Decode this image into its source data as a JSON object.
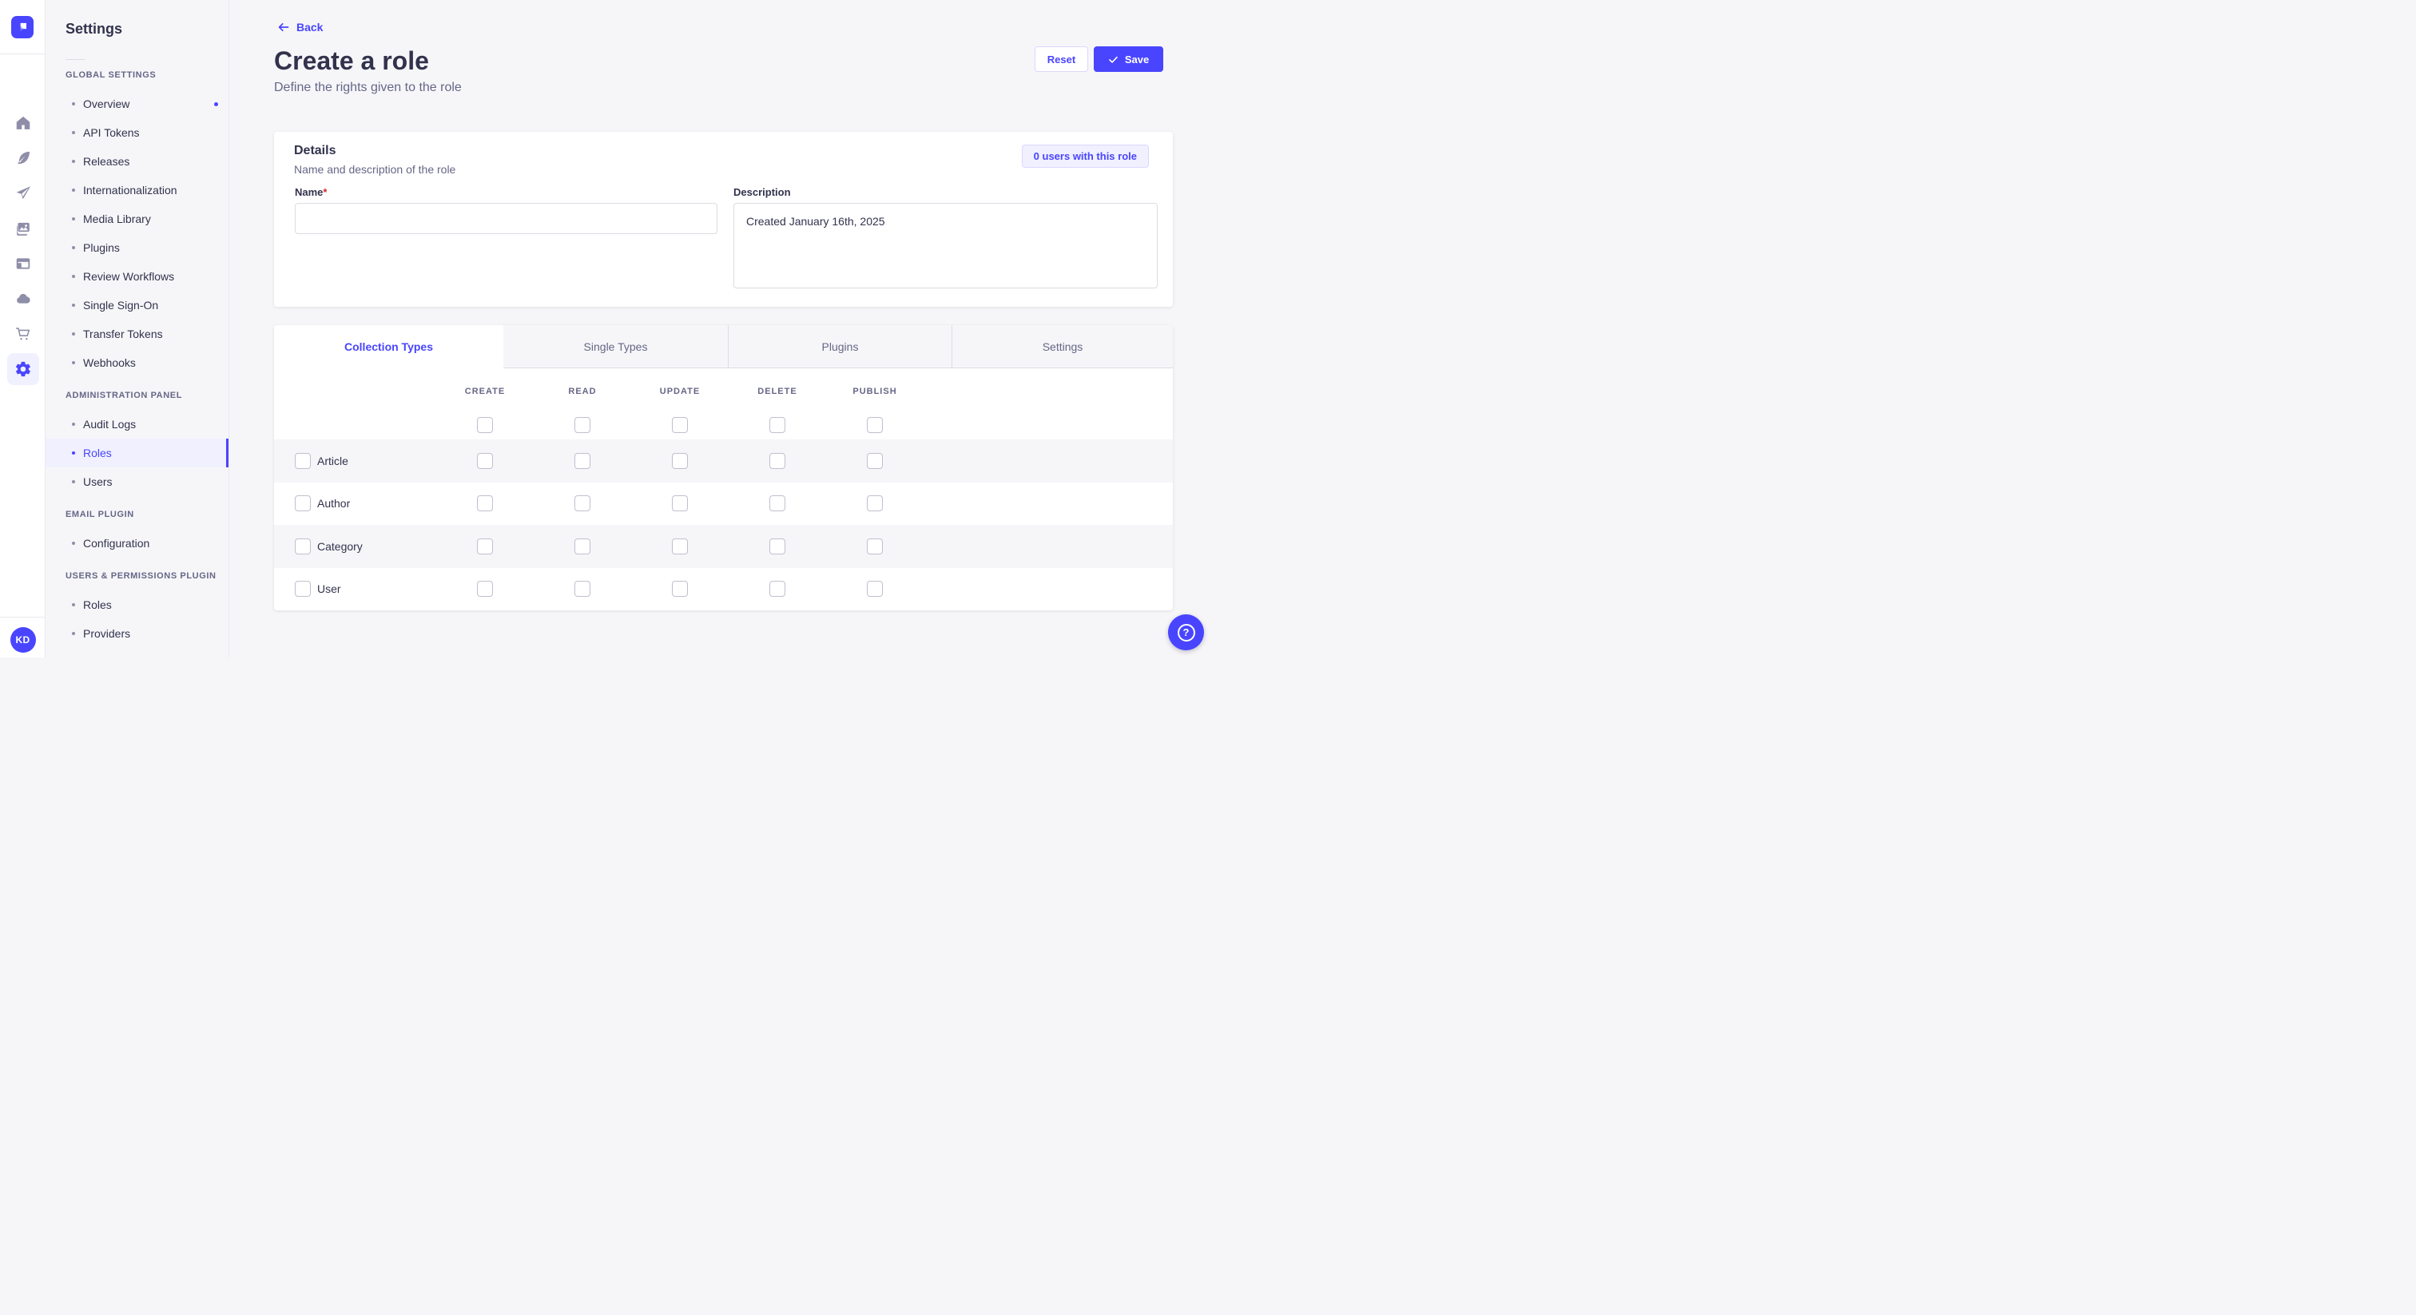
{
  "colors": {
    "primary": "#4945ff",
    "primary_light": "#f0f0ff",
    "primary_border": "#d9d8ff",
    "neutral_bg": "#f6f6f9",
    "border": "#dcdce4",
    "checkbox_border": "#c0c0cf",
    "text_dark": "#32324d",
    "text_gray": "#666687",
    "icon_gray": "#8e8ea9",
    "required_red": "#d02b20"
  },
  "rail": {
    "logo_icon": "strapi-logo",
    "icons": [
      {
        "name": "home-icon"
      },
      {
        "name": "feather-icon"
      },
      {
        "name": "paper-plane-icon"
      },
      {
        "name": "media-library-icon"
      },
      {
        "name": "layout-icon"
      },
      {
        "name": "cloud-icon"
      },
      {
        "name": "cart-icon"
      },
      {
        "name": "gear-icon",
        "active": true
      }
    ],
    "avatar_initials": "KD"
  },
  "sidebar": {
    "title": "Settings",
    "sections": [
      {
        "header": "GLOBAL SETTINGS",
        "items": [
          {
            "label": "Overview",
            "notification": true
          },
          {
            "label": "API Tokens"
          },
          {
            "label": "Releases"
          },
          {
            "label": "Internationalization"
          },
          {
            "label": "Media Library"
          },
          {
            "label": "Plugins"
          },
          {
            "label": "Review Workflows"
          },
          {
            "label": "Single Sign-On"
          },
          {
            "label": "Transfer Tokens"
          },
          {
            "label": "Webhooks"
          }
        ]
      },
      {
        "header": "ADMINISTRATION PANEL",
        "items": [
          {
            "label": "Audit Logs"
          },
          {
            "label": "Roles",
            "selected": true
          },
          {
            "label": "Users"
          }
        ]
      },
      {
        "header": "EMAIL PLUGIN",
        "items": [
          {
            "label": "Configuration"
          }
        ]
      },
      {
        "header": "USERS & PERMISSIONS PLUGIN",
        "items": [
          {
            "label": "Roles"
          },
          {
            "label": "Providers"
          }
        ]
      }
    ]
  },
  "header": {
    "back_label": "Back",
    "title": "Create a role",
    "subtitle": "Define the rights given to the role",
    "reset_label": "Reset",
    "save_label": "Save"
  },
  "details": {
    "title": "Details",
    "subtitle": "Name and description of the role",
    "users_button_label": "0 users with this role",
    "name_label": "Name",
    "name_required_mark": "*",
    "name_value": "",
    "description_label": "Description",
    "description_value": "Created January 16th, 2025"
  },
  "permissions": {
    "tabs": [
      {
        "label": "Collection Types",
        "active": true
      },
      {
        "label": "Single Types"
      },
      {
        "label": "Plugins"
      },
      {
        "label": "Settings"
      }
    ],
    "columns": [
      "CREATE",
      "READ",
      "UPDATE",
      "DELETE",
      "PUBLISH"
    ],
    "rows": [
      {
        "label": "Article",
        "checks": [
          false,
          false,
          false,
          false,
          false
        ]
      },
      {
        "label": "Author",
        "checks": [
          false,
          false,
          false,
          false,
          false
        ]
      },
      {
        "label": "Category",
        "checks": [
          false,
          false,
          false,
          false,
          false
        ]
      },
      {
        "label": "User",
        "checks": [
          false,
          false,
          false,
          false,
          false
        ]
      }
    ],
    "header_checks": [
      false,
      false,
      false,
      false,
      false
    ]
  },
  "help": {
    "icon": "help-question-icon"
  }
}
